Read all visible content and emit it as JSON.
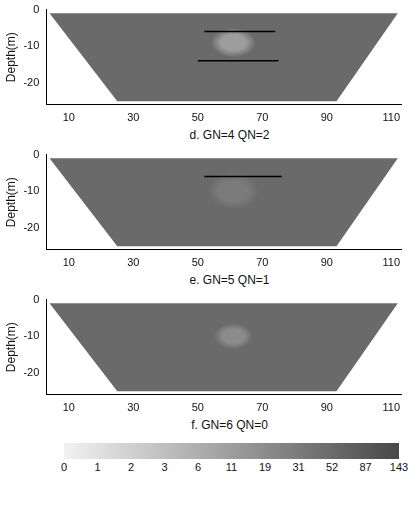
{
  "chart_data": [
    {
      "type": "section",
      "title": "d. GN=4 QN=2",
      "y_label": "Depth(m)",
      "xlim": [
        3,
        113
      ],
      "ylim": [
        -26,
        0
      ],
      "xticks": [
        10,
        30,
        50,
        70,
        90,
        110
      ],
      "yticks": [
        -20,
        -10,
        0
      ],
      "section": {
        "x": [
          4,
          112,
          93,
          25
        ],
        "y": [
          -1,
          -1,
          -25,
          -25
        ],
        "value": 52
      },
      "anomaly": {
        "x": 61,
        "y": -9,
        "width": 14,
        "height": 8,
        "value": 11
      },
      "lines": [
        {
          "x": [
            52,
            74
          ],
          "y": [
            -6,
            -6
          ]
        },
        {
          "x": [
            50,
            75
          ],
          "y": [
            -14,
            -14
          ]
        }
      ]
    },
    {
      "type": "section",
      "title": "e. GN=5 QN=1",
      "y_label": "Depth(m)",
      "xlim": [
        3,
        113
      ],
      "ylim": [
        -26,
        0
      ],
      "xticks": [
        10,
        30,
        50,
        70,
        90,
        110
      ],
      "yticks": [
        -20,
        -10,
        0
      ],
      "section": {
        "x": [
          4,
          112,
          93,
          25
        ],
        "y": [
          -1,
          -1,
          -25,
          -25
        ],
        "value": 52
      },
      "anomaly": {
        "x": 61,
        "y": -10,
        "width": 16,
        "height": 10,
        "value": 31
      },
      "lines": [
        {
          "x": [
            52,
            76
          ],
          "y": [
            -6,
            -6
          ]
        }
      ]
    },
    {
      "type": "section",
      "title": "f. GN=6 QN=0",
      "y_label": "Depth(m)",
      "xlim": [
        3,
        113
      ],
      "ylim": [
        -26,
        0
      ],
      "xticks": [
        10,
        30,
        50,
        70,
        90,
        110
      ],
      "yticks": [
        -20,
        -10,
        0
      ],
      "section": {
        "x": [
          4,
          112,
          93,
          25
        ],
        "y": [
          -1,
          -1,
          -25,
          -25
        ],
        "value": 52
      },
      "anomaly": {
        "x": 61,
        "y": -10,
        "width": 12,
        "height": 7,
        "value": 19
      }
    }
  ],
  "colorbar": {
    "ticks": [
      0,
      1,
      2,
      3,
      6,
      11,
      19,
      31,
      52,
      87,
      143
    ]
  }
}
